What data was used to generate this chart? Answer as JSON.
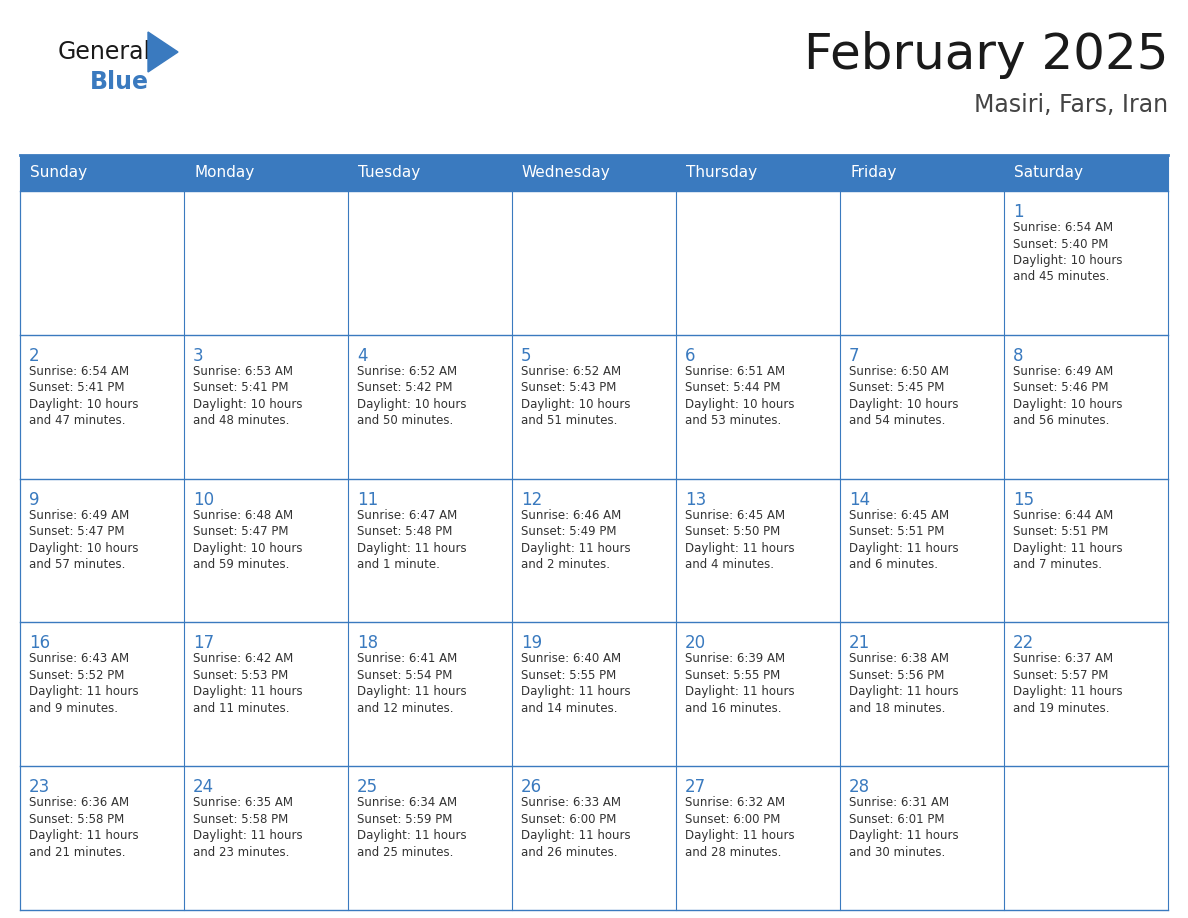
{
  "title": "February 2025",
  "subtitle": "Masiri, Fars, Iran",
  "header_color": "#3a7abf",
  "header_text_color": "#ffffff",
  "cell_bg_color": "#ffffff",
  "border_color": "#3a7abf",
  "day_headers": [
    "Sunday",
    "Monday",
    "Tuesday",
    "Wednesday",
    "Thursday",
    "Friday",
    "Saturday"
  ],
  "title_color": "#1a1a1a",
  "subtitle_color": "#444444",
  "day_number_color": "#3a7abf",
  "text_color": "#333333",
  "logo_general_color": "#1a1a1a",
  "logo_blue_color": "#3a7abf",
  "weeks": [
    [
      {
        "day": "",
        "info": ""
      },
      {
        "day": "",
        "info": ""
      },
      {
        "day": "",
        "info": ""
      },
      {
        "day": "",
        "info": ""
      },
      {
        "day": "",
        "info": ""
      },
      {
        "day": "",
        "info": ""
      },
      {
        "day": "1",
        "info": "Sunrise: 6:54 AM\nSunset: 5:40 PM\nDaylight: 10 hours\nand 45 minutes."
      }
    ],
    [
      {
        "day": "2",
        "info": "Sunrise: 6:54 AM\nSunset: 5:41 PM\nDaylight: 10 hours\nand 47 minutes."
      },
      {
        "day": "3",
        "info": "Sunrise: 6:53 AM\nSunset: 5:41 PM\nDaylight: 10 hours\nand 48 minutes."
      },
      {
        "day": "4",
        "info": "Sunrise: 6:52 AM\nSunset: 5:42 PM\nDaylight: 10 hours\nand 50 minutes."
      },
      {
        "day": "5",
        "info": "Sunrise: 6:52 AM\nSunset: 5:43 PM\nDaylight: 10 hours\nand 51 minutes."
      },
      {
        "day": "6",
        "info": "Sunrise: 6:51 AM\nSunset: 5:44 PM\nDaylight: 10 hours\nand 53 minutes."
      },
      {
        "day": "7",
        "info": "Sunrise: 6:50 AM\nSunset: 5:45 PM\nDaylight: 10 hours\nand 54 minutes."
      },
      {
        "day": "8",
        "info": "Sunrise: 6:49 AM\nSunset: 5:46 PM\nDaylight: 10 hours\nand 56 minutes."
      }
    ],
    [
      {
        "day": "9",
        "info": "Sunrise: 6:49 AM\nSunset: 5:47 PM\nDaylight: 10 hours\nand 57 minutes."
      },
      {
        "day": "10",
        "info": "Sunrise: 6:48 AM\nSunset: 5:47 PM\nDaylight: 10 hours\nand 59 minutes."
      },
      {
        "day": "11",
        "info": "Sunrise: 6:47 AM\nSunset: 5:48 PM\nDaylight: 11 hours\nand 1 minute."
      },
      {
        "day": "12",
        "info": "Sunrise: 6:46 AM\nSunset: 5:49 PM\nDaylight: 11 hours\nand 2 minutes."
      },
      {
        "day": "13",
        "info": "Sunrise: 6:45 AM\nSunset: 5:50 PM\nDaylight: 11 hours\nand 4 minutes."
      },
      {
        "day": "14",
        "info": "Sunrise: 6:45 AM\nSunset: 5:51 PM\nDaylight: 11 hours\nand 6 minutes."
      },
      {
        "day": "15",
        "info": "Sunrise: 6:44 AM\nSunset: 5:51 PM\nDaylight: 11 hours\nand 7 minutes."
      }
    ],
    [
      {
        "day": "16",
        "info": "Sunrise: 6:43 AM\nSunset: 5:52 PM\nDaylight: 11 hours\nand 9 minutes."
      },
      {
        "day": "17",
        "info": "Sunrise: 6:42 AM\nSunset: 5:53 PM\nDaylight: 11 hours\nand 11 minutes."
      },
      {
        "day": "18",
        "info": "Sunrise: 6:41 AM\nSunset: 5:54 PM\nDaylight: 11 hours\nand 12 minutes."
      },
      {
        "day": "19",
        "info": "Sunrise: 6:40 AM\nSunset: 5:55 PM\nDaylight: 11 hours\nand 14 minutes."
      },
      {
        "day": "20",
        "info": "Sunrise: 6:39 AM\nSunset: 5:55 PM\nDaylight: 11 hours\nand 16 minutes."
      },
      {
        "day": "21",
        "info": "Sunrise: 6:38 AM\nSunset: 5:56 PM\nDaylight: 11 hours\nand 18 minutes."
      },
      {
        "day": "22",
        "info": "Sunrise: 6:37 AM\nSunset: 5:57 PM\nDaylight: 11 hours\nand 19 minutes."
      }
    ],
    [
      {
        "day": "23",
        "info": "Sunrise: 6:36 AM\nSunset: 5:58 PM\nDaylight: 11 hours\nand 21 minutes."
      },
      {
        "day": "24",
        "info": "Sunrise: 6:35 AM\nSunset: 5:58 PM\nDaylight: 11 hours\nand 23 minutes."
      },
      {
        "day": "25",
        "info": "Sunrise: 6:34 AM\nSunset: 5:59 PM\nDaylight: 11 hours\nand 25 minutes."
      },
      {
        "day": "26",
        "info": "Sunrise: 6:33 AM\nSunset: 6:00 PM\nDaylight: 11 hours\nand 26 minutes."
      },
      {
        "day": "27",
        "info": "Sunrise: 6:32 AM\nSunset: 6:00 PM\nDaylight: 11 hours\nand 28 minutes."
      },
      {
        "day": "28",
        "info": "Sunrise: 6:31 AM\nSunset: 6:01 PM\nDaylight: 11 hours\nand 30 minutes."
      },
      {
        "day": "",
        "info": ""
      }
    ]
  ]
}
